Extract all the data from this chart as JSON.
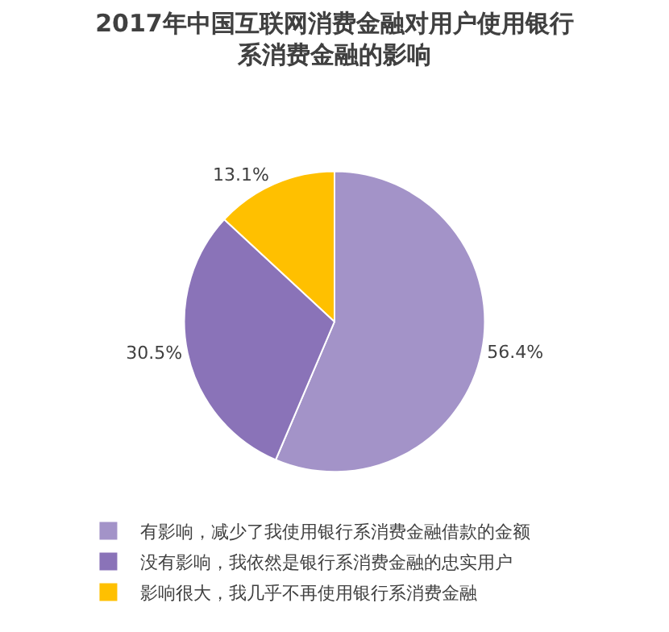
{
  "chart_data": {
    "type": "pie",
    "title": "2017年中国互联网消费金融对用户使用银行系消费金融的影响",
    "categories": [
      "有影响，减少了我使用银行系消费金融借款的金额",
      "没有影响，我依然是银行系消费金融的忠实用户",
      "影响很大，我几乎不再使用银行系消费金融"
    ],
    "values": [
      56.4,
      30.5,
      13.1
    ],
    "colors": [
      "#a393c8",
      "#8a73b8",
      "#ffc000"
    ],
    "value_labels": [
      "56.4%",
      "30.5%",
      "13.1%"
    ],
    "legend": "bottom"
  }
}
